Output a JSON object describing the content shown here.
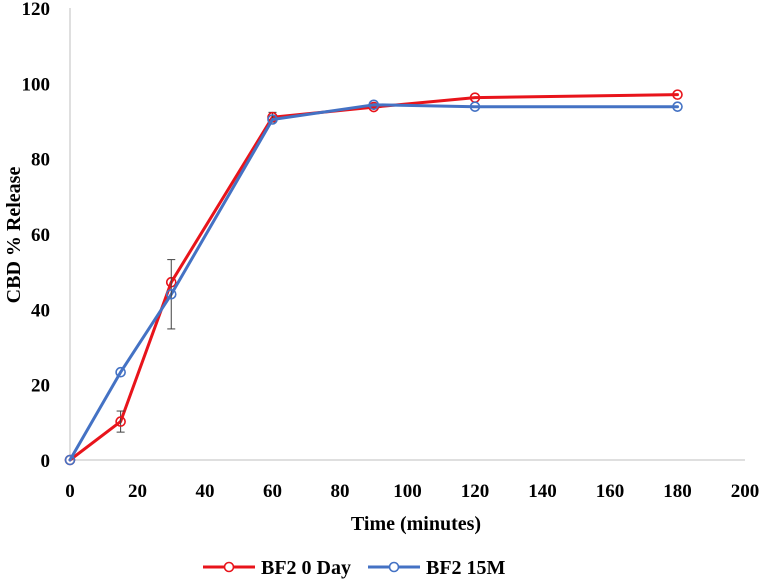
{
  "chart_data": {
    "type": "line",
    "title": "",
    "xlabel": "Time (minutes)",
    "ylabel": "CBD % Release",
    "xlim": [
      0,
      200
    ],
    "ylim": [
      0,
      120
    ],
    "xticks": [
      0,
      20,
      40,
      60,
      80,
      100,
      120,
      140,
      160,
      180,
      200
    ],
    "yticks": [
      0,
      20,
      40,
      60,
      80,
      100,
      120
    ],
    "grid": false,
    "legend_position": "bottom",
    "series": [
      {
        "name": "BF2 0 Day",
        "color": "#e8141b",
        "x": [
          0,
          15,
          30,
          60,
          90,
          120,
          180
        ],
        "y": [
          0,
          10.2,
          47.2,
          91.0,
          93.7,
          96.2,
          97.0
        ],
        "error": [
          0,
          2.8,
          0,
          1.3,
          0,
          0,
          0
        ]
      },
      {
        "name": "BF2 15M",
        "color": "#4472c4",
        "x": [
          0,
          15,
          30,
          60,
          90,
          120,
          180
        ],
        "y": [
          0,
          23.3,
          44.0,
          90.4,
          94.3,
          93.8,
          93.8
        ],
        "error": [
          0,
          0,
          9.2,
          0,
          0,
          0,
          0
        ]
      }
    ]
  }
}
